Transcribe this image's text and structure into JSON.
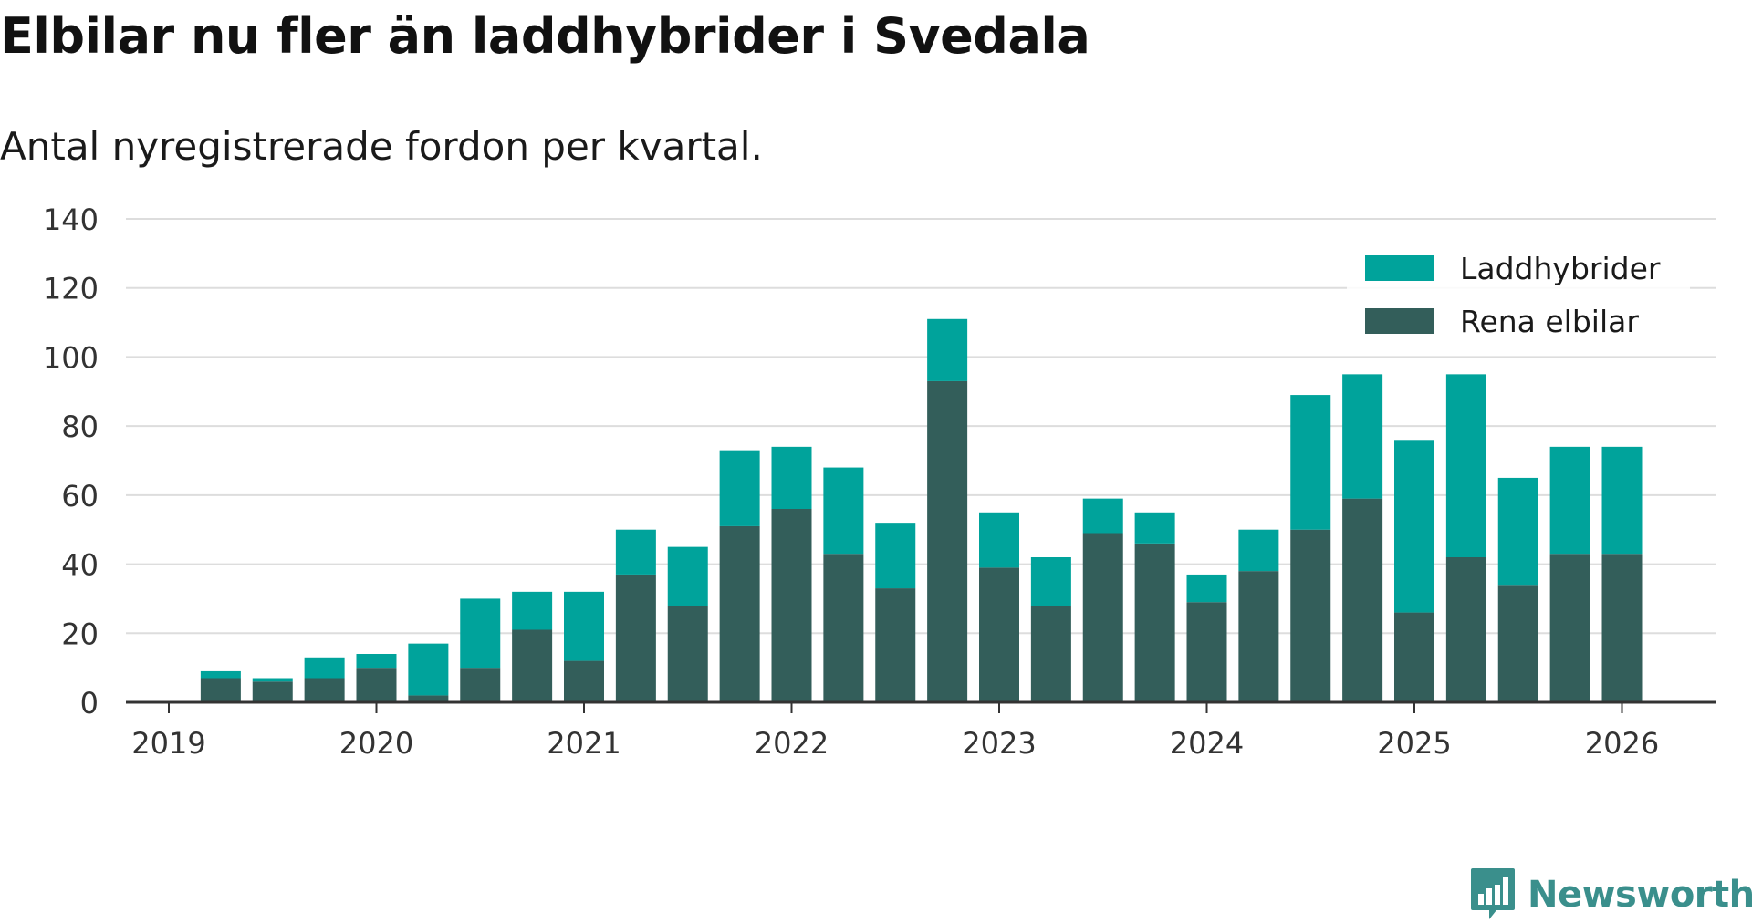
{
  "title": "Elbilar nu fler än laddhybrider i Svedala",
  "subtitle": "Antal nyregistrerade fordon per kvartal.",
  "brand": "Newsworthy",
  "colors": {
    "laddhybrider": "#00a39b",
    "rena_elbilar": "#335e5a",
    "grid": "#dddddd",
    "axis": "#333333",
    "brand": "#3a8f8c"
  },
  "chart_data": {
    "type": "bar",
    "stacked": true,
    "title": "Elbilar nu fler än laddhybrider i Svedala",
    "subtitle": "Antal nyregistrerade fordon per kvartal.",
    "xlabel": "",
    "ylabel": "",
    "ylim": [
      0,
      140
    ],
    "yticks": [
      0,
      20,
      40,
      60,
      80,
      100,
      120,
      140
    ],
    "xlim": [
      2019,
      2026.45
    ],
    "xticks": [
      "2019",
      "2020",
      "2021",
      "2022",
      "2023",
      "2024",
      "2025",
      "2026"
    ],
    "grid": true,
    "legend_position": "top-right",
    "categories": [
      "2019Q2",
      "2019Q3",
      "2019Q4",
      "2020Q1",
      "2020Q2",
      "2020Q3",
      "2020Q4",
      "2021Q1",
      "2021Q2",
      "2021Q3",
      "2021Q4",
      "2022Q1",
      "2022Q2",
      "2022Q3",
      "2022Q4",
      "2023Q1",
      "2023Q2",
      "2023Q3",
      "2023Q4",
      "2024Q1",
      "2024Q2",
      "2024Q3",
      "2024Q4",
      "2025Q1",
      "2025Q2",
      "2025Q3",
      "2025Q4",
      "2026Q1"
    ],
    "x": [
      2019.25,
      2019.5,
      2019.75,
      2020.0,
      2020.25,
      2020.5,
      2020.75,
      2021.0,
      2021.25,
      2021.5,
      2021.75,
      2022.0,
      2022.25,
      2022.5,
      2022.75,
      2023.0,
      2023.25,
      2023.5,
      2023.75,
      2024.0,
      2024.25,
      2024.5,
      2024.75,
      2025.0,
      2025.25,
      2025.5,
      2025.75,
      2026.0
    ],
    "series": [
      {
        "name": "Rena elbilar",
        "key": "rena_elbilar",
        "values": [
          7,
          6,
          7,
          10,
          2,
          10,
          21,
          12,
          37,
          28,
          51,
          56,
          43,
          33,
          93,
          39,
          28,
          49,
          46,
          29,
          38,
          50,
          59,
          26,
          42,
          34,
          43,
          43
        ]
      },
      {
        "name": "Laddhybrider",
        "key": "laddhybrider",
        "values": [
          2,
          1,
          6,
          4,
          15,
          20,
          11,
          20,
          13,
          17,
          22,
          18,
          25,
          19,
          18,
          16,
          14,
          10,
          9,
          8,
          12,
          39,
          36,
          50,
          53,
          31,
          31,
          31
        ]
      }
    ],
    "legend": [
      "Laddhybrider",
      "Rena elbilar"
    ]
  }
}
